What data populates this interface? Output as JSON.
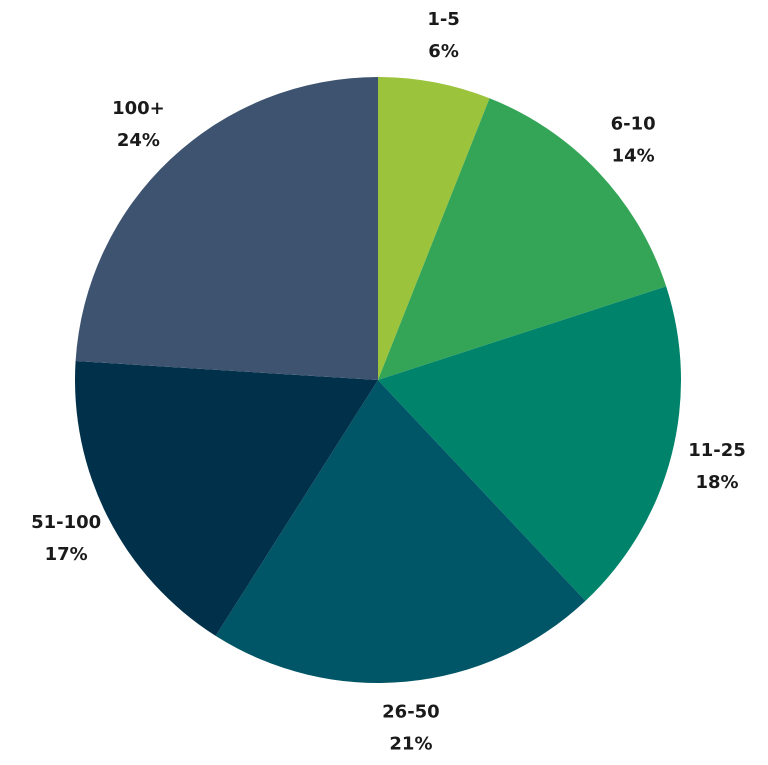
{
  "chart_data": {
    "type": "pie",
    "categories": [
      "1-5",
      "6-10",
      "11-25",
      "26-50",
      "51-100",
      "100+"
    ],
    "values": [
      6,
      14,
      18,
      21,
      17,
      24
    ],
    "value_labels": [
      "6%",
      "14%",
      "18%",
      "21%",
      "17%",
      "24%"
    ],
    "colors": [
      "#9bc33b",
      "#34a557",
      "#00836b",
      "#005566",
      "#01304a",
      "#3e5370"
    ]
  }
}
